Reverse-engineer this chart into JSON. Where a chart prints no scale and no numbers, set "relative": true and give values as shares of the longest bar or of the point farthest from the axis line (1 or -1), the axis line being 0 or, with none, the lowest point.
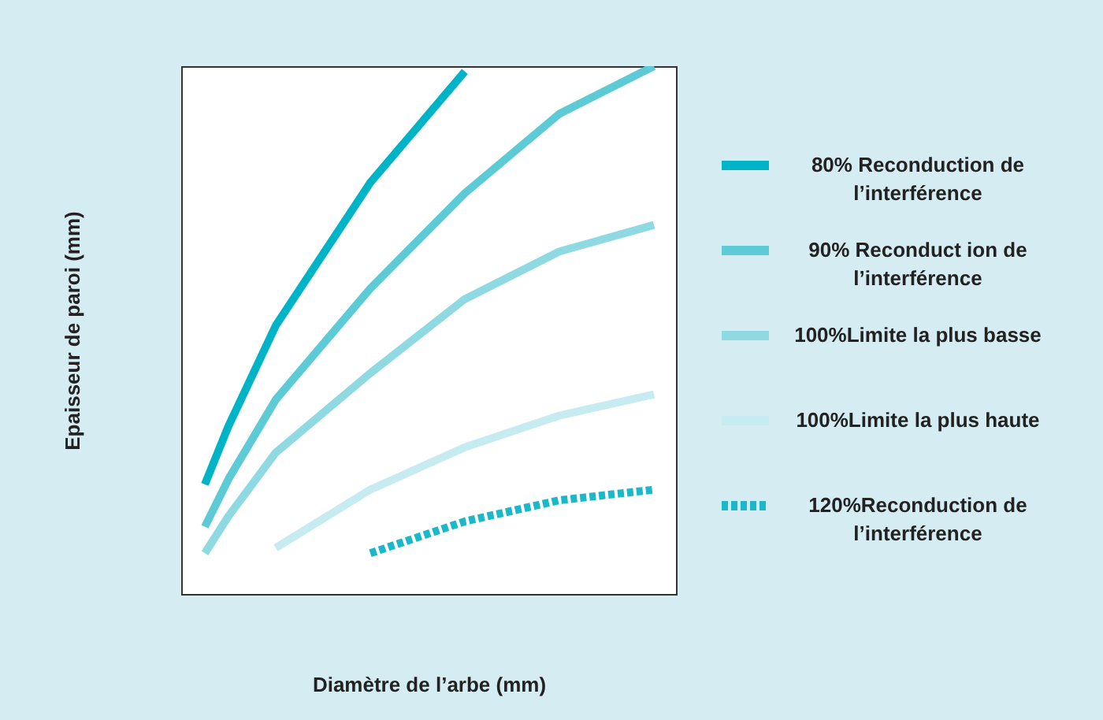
{
  "chart_data": {
    "type": "line",
    "relative": true,
    "xlabel": "Diamètre de l’arbe (mm)",
    "ylabel": "Epaisseur de paroi (mm)",
    "legend": "right",
    "line_style": "solid",
    "marker": "none",
    "categories": [
      null,
      null,
      null,
      null,
      null,
      null,
      null,
      null,
      null,
      null,
      null,
      null,
      null,
      null,
      null,
      null,
      null,
      null,
      null,
      null,
      null,
      null
    ],
    "series": [
      {
        "name": "80% Reconduction de l’interférence",
        "color": "#00b4c8",
        "values": [
          null,
          0.21,
          0.32,
          null,
          0.51,
          null,
          null,
          null,
          0.78,
          null,
          null,
          null,
          0.99,
          null,
          null,
          null,
          null,
          null,
          null,
          null,
          null,
          null
        ]
      },
      {
        "name": "90% Reconduct ion de l’interférence",
        "color": "#5ccbd6",
        "values": [
          null,
          0.13,
          0.22,
          null,
          0.37,
          null,
          null,
          null,
          0.58,
          null,
          null,
          null,
          0.76,
          null,
          null,
          null,
          0.91,
          null,
          null,
          null,
          1,
          null
        ]
      },
      {
        "name": "100%Limite la plus basse",
        "color": "#8fd9e2",
        "values": [
          null,
          0.08,
          0.15,
          null,
          0.27,
          null,
          null,
          null,
          0.42,
          null,
          null,
          null,
          0.56,
          null,
          null,
          null,
          0.65,
          null,
          null,
          null,
          0.7,
          null
        ]
      },
      {
        "name": "100%Limite la plus haute",
        "color": "#c6ebf0",
        "values": [
          null,
          null,
          null,
          null,
          0.09,
          null,
          null,
          null,
          0.2,
          null,
          null,
          null,
          0.28,
          null,
          null,
          null,
          0.34,
          null,
          null,
          null,
          0.38,
          null
        ]
      },
      {
        "name": "120%Reconduction de l’interférence",
        "color": "#1ab8c8",
        "line_style": "dotted",
        "values": [
          null,
          null,
          null,
          null,
          null,
          null,
          null,
          null,
          0.08,
          null,
          null,
          null,
          0.14,
          null,
          null,
          null,
          0.18,
          null,
          null,
          null,
          0.2,
          null
        ]
      }
    ]
  }
}
